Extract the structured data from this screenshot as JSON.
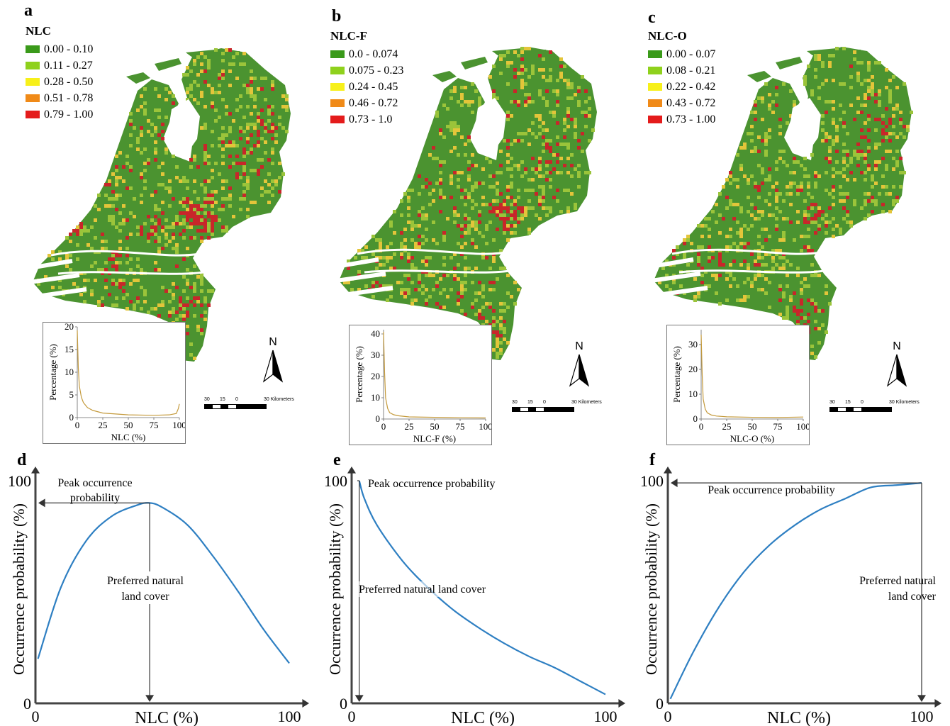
{
  "maps": [
    {
      "letter": "a",
      "legend_title": "NLC",
      "legend": [
        "0.00 - 0.10",
        "0.11 - 0.27",
        "0.28 - 0.50",
        "0.51 - 0.78",
        "0.79 - 1.00"
      ],
      "inset": {
        "y_ticks": [
          "20",
          "15",
          "10",
          "5",
          "0"
        ],
        "x_ticks": [
          "0",
          "25",
          "50",
          "75",
          "100"
        ],
        "ylabel": "Percentage (%)",
        "xlabel": "NLC (%)"
      },
      "north_label": "N",
      "scale": {
        "labels": [
          "30",
          "15",
          "0",
          "30 Kilometers"
        ]
      }
    },
    {
      "letter": "b",
      "legend_title": "NLC-F",
      "legend": [
        "0.0 - 0.074",
        "0.075 - 0.23",
        "0.24 - 0.45",
        "0.46 - 0.72",
        "0.73 - 1.0"
      ],
      "inset": {
        "y_ticks": [
          "40",
          "30",
          "20",
          "10",
          "0"
        ],
        "x_ticks": [
          "0",
          "25",
          "50",
          "75",
          "100"
        ],
        "ylabel": "Percentage (%)",
        "xlabel": "NLC-F (%)"
      },
      "north_label": "N",
      "scale": {
        "labels": [
          "30",
          "15",
          "0",
          "30 Kilometers"
        ]
      }
    },
    {
      "letter": "c",
      "legend_title": "NLC-O",
      "legend": [
        "0.00 - 0.07",
        "0.08 - 0.21",
        "0.22 - 0.42",
        "0.43 - 0.72",
        "0.73 - 1.00"
      ],
      "inset": {
        "y_ticks": [
          "30",
          "20",
          "10",
          "0"
        ],
        "x_ticks": [
          "0",
          "25",
          "50",
          "75",
          "100"
        ],
        "ylabel": "Percentage (%)",
        "xlabel": "NLC-O (%)"
      },
      "north_label": "N",
      "scale": {
        "labels": [
          "30",
          "15",
          "0",
          "30 Kilometers"
        ]
      }
    }
  ],
  "legend_colors": [
    "#3a9a1a",
    "#8fd11c",
    "#f7f01a",
    "#f08a18",
    "#e41b1b"
  ],
  "map_colors": {
    "green": "#4b9330",
    "light": "#9bc43a",
    "yellow": "#e3c53a",
    "red": "#c8262a"
  },
  "curves": [
    {
      "letter": "d",
      "ylabel": "Occurrence probability (%)",
      "xlabel": "NLC (%)",
      "y_top": "100",
      "y_bottom": "0",
      "x_left": "0",
      "x_right": "100",
      "peak_label_1": "Peak occurrence",
      "peak_label_2": "probability",
      "pref_label_1": "Preferred natural",
      "pref_label_2": "land cover"
    },
    {
      "letter": "e",
      "ylabel": "Occurrence probability (%)",
      "xlabel": "NLC (%)",
      "y_top": "100",
      "y_bottom": "0",
      "x_left": "0",
      "x_right": "100",
      "peak_label_1": "Peak occurrence probability",
      "pref_label_1": "Preferred natural land cover"
    },
    {
      "letter": "f",
      "ylabel": "Occurrence probability (%)",
      "xlabel": "NLC (%)",
      "y_top": "100",
      "y_bottom": "0",
      "x_left": "0",
      "x_right": "100",
      "peak_label_1": "Peak occurrence probability",
      "pref_label_1": "Preferred natural",
      "pref_label_2": "land cover"
    }
  ],
  "chart_data": [
    {
      "type": "line",
      "xlabel": "NLC (%)",
      "ylabel": "Percentage (%)",
      "ylim": [
        0,
        20
      ],
      "x": [
        0,
        1,
        2,
        4,
        6,
        10,
        15,
        25,
        50,
        75,
        90,
        97,
        99,
        100
      ],
      "series": [
        {
          "values": [
            19.2,
            11,
            7,
            4.5,
            3.3,
            2.2,
            1.6,
            1.0,
            0.6,
            0.5,
            0.6,
            0.9,
            2.0,
            3.0
          ]
        }
      ]
    },
    {
      "type": "line",
      "xlabel": "NLC-F (%)",
      "ylabel": "Percentage (%)",
      "ylim": [
        0,
        42
      ],
      "x": [
        0,
        1,
        2,
        4,
        6,
        10,
        15,
        25,
        50,
        75,
        100
      ],
      "series": [
        {
          "values": [
            41,
            22,
            10,
            5,
            3,
            2,
            1.5,
            1,
            0.8,
            0.6,
            0.5
          ]
        }
      ]
    },
    {
      "type": "line",
      "xlabel": "NLC-O (%)",
      "ylabel": "Percentage (%)",
      "ylim": [
        0,
        36
      ],
      "x": [
        0,
        1,
        2,
        4,
        6,
        10,
        15,
        25,
        50,
        75,
        100
      ],
      "series": [
        {
          "values": [
            34,
            18,
            8,
            4,
            2.5,
            1.6,
            1.2,
            0.9,
            0.7,
            0.6,
            0.8
          ]
        }
      ]
    },
    {
      "type": "line",
      "xlabel": "NLC (%)",
      "ylabel": "Occurrence probability (%)",
      "ylim": [
        0,
        100
      ],
      "x": [
        1,
        10,
        20,
        30,
        40,
        45,
        50,
        60,
        70,
        80,
        90,
        100
      ],
      "series": [
        {
          "values": [
            20,
            52,
            73,
            84,
            89,
            90,
            88,
            80,
            66,
            50,
            33,
            18
          ]
        }
      ]
    },
    {
      "type": "line",
      "xlabel": "NLC (%)",
      "ylabel": "Occurrence probability (%)",
      "ylim": [
        0,
        100
      ],
      "x": [
        3,
        5,
        10,
        20,
        30,
        40,
        50,
        60,
        70,
        80,
        90,
        100
      ],
      "series": [
        {
          "values": [
            100,
            92,
            80,
            64,
            52,
            42,
            34,
            27,
            21,
            16,
            10,
            4
          ]
        }
      ]
    },
    {
      "type": "line",
      "xlabel": "NLC (%)",
      "ylabel": "Occurrence probability (%)",
      "ylim": [
        0,
        100
      ],
      "x": [
        1,
        10,
        20,
        30,
        40,
        50,
        60,
        70,
        80,
        90,
        100
      ],
      "series": [
        {
          "values": [
            2,
            23,
            43,
            59,
            71,
            80,
            87,
            92,
            97,
            98,
            99
          ]
        }
      ]
    }
  ]
}
